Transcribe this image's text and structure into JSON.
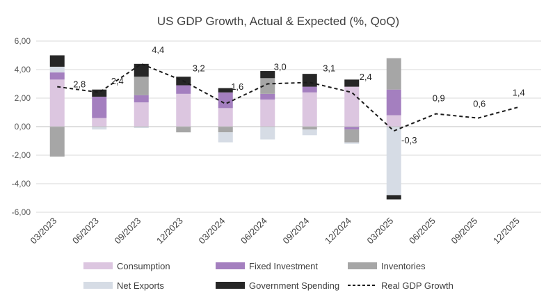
{
  "chart_data": {
    "type": "bar",
    "title": "US GDP Growth, Actual & Expected (%, QoQ)",
    "categories": [
      "03/2023",
      "06/2023",
      "09/2023",
      "12/2023",
      "03/2024",
      "06/2024",
      "09/2024",
      "12/2024",
      "03/2025",
      "06/2025",
      "09/2025",
      "12/2025"
    ],
    "ylim": [
      -6,
      6
    ],
    "yticks": [
      "6,00",
      "4,00",
      "2,00",
      "0,00",
      "-2,00",
      "-4,00",
      "-6,00"
    ],
    "ytick_values": [
      6,
      4,
      2,
      0,
      -2,
      -4,
      -6
    ],
    "grid": true,
    "legend_position": "bottom",
    "series": [
      {
        "name": "Consumption",
        "kind": "bar",
        "color": "#dcc6e0",
        "values": [
          3.3,
          0.6,
          1.7,
          2.3,
          1.3,
          1.9,
          2.4,
          2.8,
          0.8,
          null,
          null,
          null
        ]
      },
      {
        "name": "Fixed Investment",
        "kind": "bar",
        "color": "#a47fbf",
        "values": [
          0.5,
          1.5,
          0.5,
          0.6,
          1.1,
          0.4,
          0.4,
          -0.2,
          1.8,
          null,
          null,
          null
        ]
      },
      {
        "name": "Inventories",
        "kind": "bar",
        "color": "#a6a6a6",
        "values": [
          -2.1,
          0.0,
          1.3,
          -0.4,
          -0.4,
          1.1,
          -0.2,
          -0.9,
          2.2,
          null,
          null,
          null
        ]
      },
      {
        "name": "Net Exports",
        "kind": "bar",
        "color": "#d6dce5",
        "values": [
          0.4,
          -0.2,
          -0.1,
          0.0,
          -0.7,
          -0.9,
          -0.4,
          -0.1,
          -4.8,
          null,
          null,
          null
        ]
      },
      {
        "name": "Government Spending",
        "kind": "bar",
        "color": "#262626",
        "values": [
          0.8,
          0.5,
          0.9,
          0.6,
          0.3,
          0.5,
          0.9,
          0.5,
          -0.3,
          null,
          null,
          null
        ]
      },
      {
        "name": "Real GDP Growth",
        "kind": "line",
        "color": "#1a1a1a",
        "values": [
          2.8,
          2.4,
          4.4,
          3.2,
          1.6,
          3.0,
          3.1,
          2.4,
          -0.3,
          0.9,
          0.6,
          1.4
        ],
        "labels": [
          "2,8",
          "2,4",
          "4,4",
          "3,2",
          "1,6",
          "3,0",
          "3,1",
          "2,4",
          "-0,3",
          "0,9",
          "0,6",
          "1,4"
        ]
      }
    ]
  }
}
